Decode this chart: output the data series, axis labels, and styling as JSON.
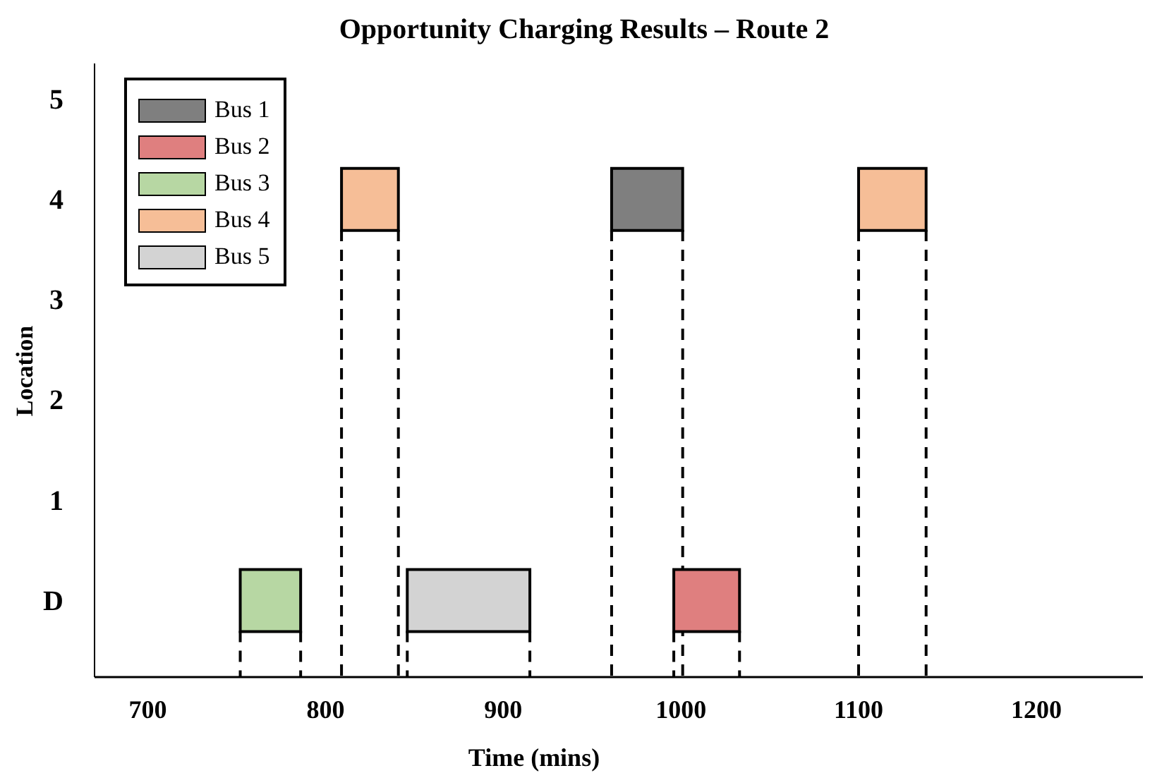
{
  "chart_data": {
    "type": "bar",
    "orientation": "horizontal",
    "title": "Opportunity Charging Results – Route 2",
    "xlabel": "Time (mins)",
    "ylabel": "Location",
    "categories": [
      "5",
      "4",
      "3",
      "2",
      "1",
      "D"
    ],
    "xlim": [
      670,
      1260
    ],
    "xticks": [
      700,
      800,
      900,
      1000,
      1100,
      1200
    ],
    "legend": "top left",
    "grid": false,
    "ref_lines": [
      {
        "axis": "x",
        "value": 809,
        "line_style": "dashed",
        "color": "#000000"
      },
      {
        "axis": "x",
        "value": 841,
        "line_style": "dashed",
        "color": "#000000"
      },
      {
        "axis": "x",
        "value": 961,
        "line_style": "dashed",
        "color": "#000000"
      },
      {
        "axis": "x",
        "value": 1001,
        "line_style": "dashed",
        "color": "#000000"
      },
      {
        "axis": "x",
        "value": 1100,
        "line_style": "dashed",
        "color": "#000000"
      },
      {
        "axis": "x",
        "value": 1138,
        "line_style": "dashed",
        "color": "#000000"
      }
    ],
    "series": [
      {
        "name": "Bus 1",
        "color": "#7f7f7f",
        "base": [
          null,
          961,
          null,
          null,
          null,
          null
        ],
        "values": [
          null,
          40,
          null,
          null,
          null,
          null
        ]
      },
      {
        "name": "Bus 2",
        "color": "#df7f7f",
        "base": [
          null,
          null,
          null,
          null,
          null,
          996
        ],
        "values": [
          null,
          null,
          null,
          null,
          null,
          37
        ]
      },
      {
        "name": "Bus 3",
        "color": "#b7d7a3",
        "base": [
          null,
          null,
          null,
          null,
          null,
          752
        ],
        "values": [
          null,
          null,
          null,
          null,
          null,
          34
        ]
      },
      {
        "name": "Bus 4",
        "color": "#f6be97",
        "base": [
          null,
          809,
          null,
          null,
          null,
          null
        ],
        "values": [
          null,
          32,
          null,
          null,
          null,
          null
        ]
      },
      {
        "name": "Bus 5",
        "color": "#d3d3d3",
        "base": [
          null,
          null,
          null,
          null,
          null,
          846
        ],
        "values": [
          null,
          null,
          null,
          null,
          null,
          69
        ]
      },
      {
        "color": "#f6be97",
        "base": [
          null,
          1100,
          null,
          null,
          null,
          null
        ],
        "values": [
          null,
          38,
          null,
          null,
          null,
          null
        ]
      }
    ]
  }
}
